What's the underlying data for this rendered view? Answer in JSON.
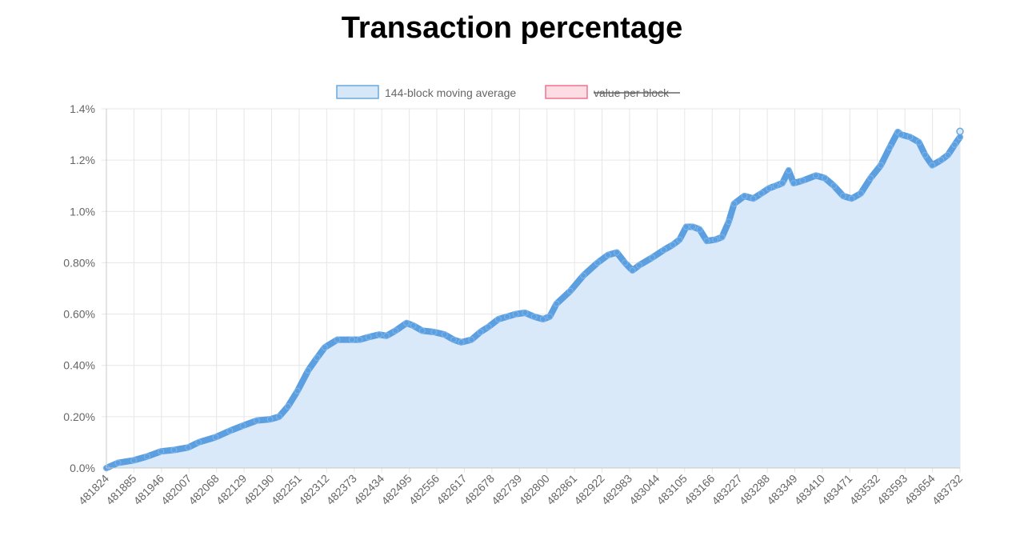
{
  "chart_data": {
    "type": "area",
    "title": "Transaction percentage",
    "legend": [
      {
        "label": "144-block moving average",
        "fill": "#d6e7f8",
        "stroke": "#6aa9dc",
        "hidden": false
      },
      {
        "label": "value per block",
        "fill": "#fbdde3",
        "stroke": "#f0728e",
        "hidden": true
      }
    ],
    "legend_position": "top",
    "grid": true,
    "x_range": [
      481824,
      483732
    ],
    "x_ticks": [
      "481824",
      "481885",
      "481946",
      "482007",
      "482068",
      "482129",
      "482190",
      "482251",
      "482312",
      "482373",
      "482434",
      "482495",
      "482556",
      "482617",
      "482678",
      "482739",
      "482800",
      "482861",
      "482922",
      "482983",
      "483044",
      "483105",
      "483166",
      "483227",
      "483288",
      "483349",
      "483410",
      "483471",
      "483532",
      "483593",
      "483654",
      "483732"
    ],
    "y_range": [
      0,
      1.4
    ],
    "y_ticks": [
      "0.0%",
      "0.20%",
      "0.40%",
      "0.60%",
      "0.80%",
      "1.0%",
      "1.2%",
      "1.4%"
    ],
    "series": [
      {
        "name": "144-block moving average",
        "line_color": "#5b9fe0",
        "fill_color": "#d9e9f9",
        "x": [
          481824,
          481850,
          481885,
          481915,
          481946,
          481975,
          482007,
          482030,
          482068,
          482100,
          482129,
          482160,
          482190,
          482210,
          482230,
          482251,
          482275,
          482295,
          482312,
          482340,
          482373,
          482390,
          482410,
          482434,
          482450,
          482470,
          482495,
          482510,
          482530,
          482556,
          482580,
          482600,
          482617,
          482640,
          482660,
          482678,
          482700,
          482720,
          482739,
          482760,
          482780,
          482800,
          482815,
          482830,
          482861,
          482890,
          482922,
          482945,
          482965,
          482983,
          483000,
          483015,
          483044,
          483070,
          483090,
          483105,
          483120,
          483135,
          483150,
          483166,
          483185,
          483200,
          483215,
          483227,
          483250,
          483270,
          483288,
          483305,
          483320,
          483335,
          483349,
          483360,
          483380,
          483410,
          483430,
          483450,
          483471,
          483490,
          483510,
          483532,
          483555,
          483575,
          483593,
          483600,
          483620,
          483640,
          483654,
          483670,
          483690,
          483705,
          483720,
          483732
        ],
        "y": [
          0.0,
          0.02,
          0.03,
          0.045,
          0.065,
          0.07,
          0.08,
          0.1,
          0.12,
          0.145,
          0.165,
          0.185,
          0.19,
          0.2,
          0.24,
          0.3,
          0.38,
          0.43,
          0.47,
          0.5,
          0.5,
          0.5,
          0.51,
          0.52,
          0.515,
          0.535,
          0.565,
          0.555,
          0.535,
          0.53,
          0.52,
          0.5,
          0.49,
          0.5,
          0.53,
          0.55,
          0.58,
          0.59,
          0.6,
          0.605,
          0.59,
          0.58,
          0.59,
          0.64,
          0.69,
          0.75,
          0.8,
          0.83,
          0.84,
          0.8,
          0.77,
          0.79,
          0.82,
          0.85,
          0.87,
          0.89,
          0.94,
          0.94,
          0.93,
          0.885,
          0.89,
          0.9,
          0.96,
          1.03,
          1.06,
          1.05,
          1.07,
          1.09,
          1.1,
          1.11,
          1.16,
          1.11,
          1.12,
          1.14,
          1.13,
          1.1,
          1.06,
          1.05,
          1.07,
          1.13,
          1.18,
          1.25,
          1.31,
          1.3,
          1.29,
          1.27,
          1.22,
          1.18,
          1.2,
          1.22,
          1.26,
          1.29
        ]
      }
    ]
  }
}
